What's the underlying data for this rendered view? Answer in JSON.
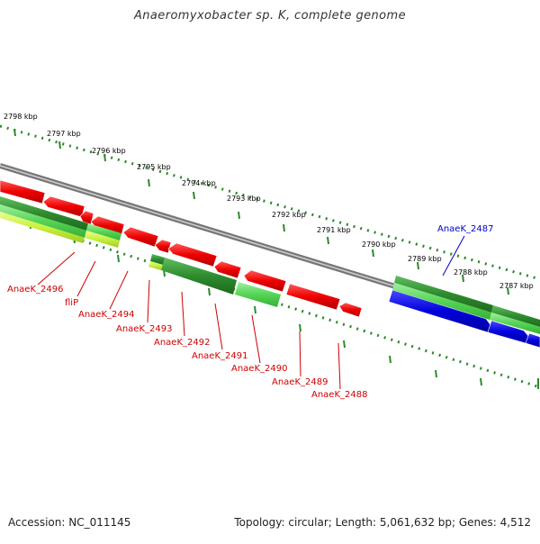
{
  "title": "Anaeromyxobacter sp. K, complete genome",
  "footer": {
    "accession": "Accession: NC_011145",
    "summary": "Topology: circular; Length: 5,061,632 bp; Genes: 4,512"
  },
  "scale_labels": [
    "2798 kbp",
    "2797 kbp",
    "2796 kbp",
    "2795 kbp",
    "2794 kbp",
    "2793 kbp",
    "2792 kbp",
    "2791 kbp",
    "2790 kbp",
    "2789 kbp",
    "2788 kbp",
    "2787 kbp"
  ],
  "gene_labels": [
    "AnaeK_2496",
    "fliP",
    "AnaeK_2494",
    "AnaeK_2493",
    "AnaeK_2492",
    "AnaeK_2491",
    "AnaeK_2490",
    "AnaeK_2489",
    "AnaeK_2488",
    "AnaeK_2487"
  ],
  "colors": {
    "reverse_genes": "#ee0000",
    "forward_genes": "#0000dd",
    "red_labels": "#cc0000",
    "blue_labels": "#0000cc",
    "backbone": "#777777",
    "scale_ticks": "#2a8a2a",
    "cds_dark": "#2e8b2e",
    "cds_light": "#55d455",
    "cds_yellow": "#c8f040"
  }
}
